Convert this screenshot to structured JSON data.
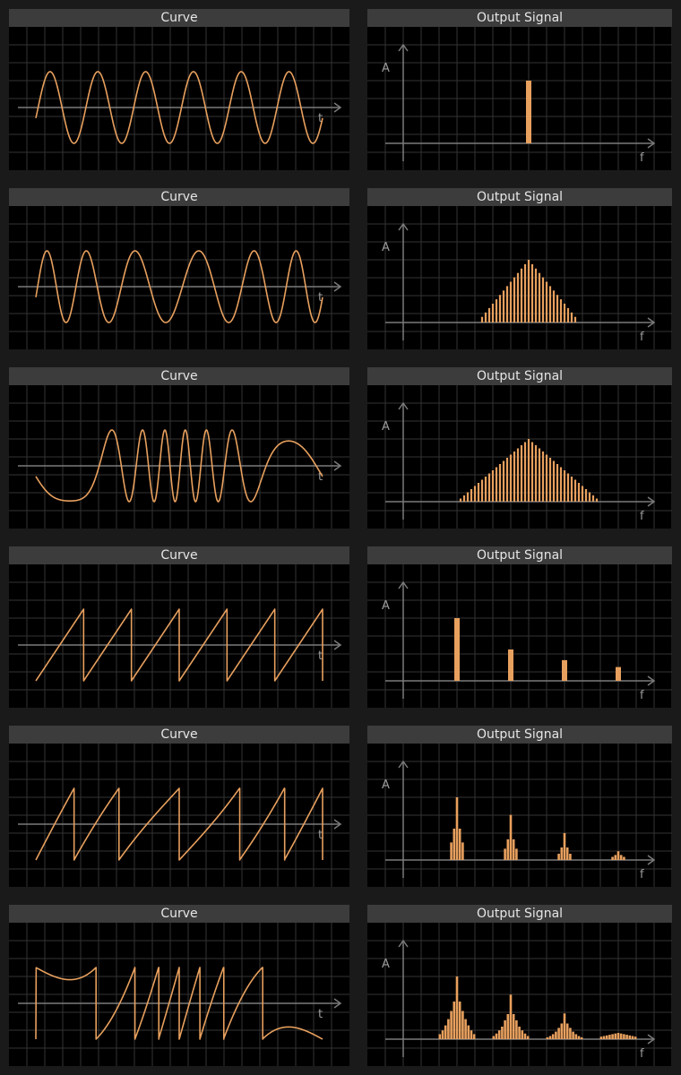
{
  "rows": [
    {
      "curve": {
        "title": "Curve",
        "axis_label": "t",
        "kind": "sine"
      },
      "spectrum": {
        "title": "Output Signal",
        "y_label": "A",
        "x_label": "f",
        "groups": [
          {
            "center": 1.0,
            "bars": [
              1.0
            ]
          }
        ]
      }
    },
    {
      "curve": {
        "title": "Curve",
        "axis_label": "t",
        "kind": "fm-sine"
      },
      "spectrum": {
        "title": "Output Signal",
        "y_label": "A",
        "x_label": "f",
        "groups": [
          {
            "center": 1.0,
            "bars": [
              1.0,
              0.93,
              0.86,
              0.79,
              0.72,
              0.65,
              0.58,
              0.51,
              0.44,
              0.37,
              0.3,
              0.23,
              0.16,
              0.09
            ]
          }
        ]
      }
    },
    {
      "curve": {
        "title": "Curve",
        "axis_label": "t",
        "kind": "fm-sine-strong"
      },
      "spectrum": {
        "title": "Output Signal",
        "y_label": "A",
        "x_label": "f",
        "groups": [
          {
            "center": 1.0,
            "bars": [
              1.0,
              0.95,
              0.9,
              0.85,
              0.8,
              0.75,
              0.7,
              0.65,
              0.6,
              0.55,
              0.5,
              0.45,
              0.4,
              0.35,
              0.3,
              0.25,
              0.2,
              0.15,
              0.1,
              0.05
            ]
          }
        ]
      }
    },
    {
      "curve": {
        "title": "Curve",
        "axis_label": "t",
        "kind": "sawtooth"
      },
      "spectrum": {
        "title": "Output Signal",
        "y_label": "A",
        "x_label": "f",
        "groups": [
          {
            "center": 1,
            "bars": [
              1.0
            ]
          },
          {
            "center": 2,
            "bars": [
              0.5
            ]
          },
          {
            "center": 3,
            "bars": [
              0.33
            ]
          },
          {
            "center": 4,
            "bars": [
              0.22
            ]
          }
        ]
      }
    },
    {
      "curve": {
        "title": "Curve",
        "axis_label": "t",
        "kind": "fm-sawtooth"
      },
      "spectrum": {
        "title": "Output Signal",
        "y_label": "A",
        "x_label": "f",
        "groups": [
          {
            "center": 1,
            "bars": [
              1.0,
              0.5,
              0.28
            ]
          },
          {
            "center": 2,
            "bars": [
              0.72,
              0.33,
              0.18
            ]
          },
          {
            "center": 3,
            "bars": [
              0.43,
              0.2,
              0.1
            ]
          },
          {
            "center": 4,
            "bars": [
              0.14,
              0.08,
              0.05
            ]
          }
        ]
      }
    },
    {
      "curve": {
        "title": "Curve",
        "axis_label": "t",
        "kind": "fm-sawtooth-strong"
      },
      "spectrum": {
        "title": "Output Signal",
        "y_label": "A",
        "x_label": "f",
        "groups": [
          {
            "center": 1,
            "bars": [
              1.0,
              0.6,
              0.45,
              0.32,
              0.22,
              0.14,
              0.08
            ]
          },
          {
            "center": 2,
            "bars": [
              0.71,
              0.4,
              0.3,
              0.2,
              0.14,
              0.09,
              0.05
            ]
          },
          {
            "center": 3,
            "bars": [
              0.41,
              0.25,
              0.18,
              0.12,
              0.08,
              0.05,
              0.03
            ]
          },
          {
            "center": 4,
            "bars": [
              0.1,
              0.09,
              0.08,
              0.07,
              0.06,
              0.05,
              0.04
            ]
          }
        ]
      }
    }
  ],
  "colors": {
    "trace": "#e8a05e",
    "bar": "#e8a05e",
    "grid": "#333333",
    "axis": "#7a7a7a",
    "title_bg": "#3c3c3c"
  }
}
